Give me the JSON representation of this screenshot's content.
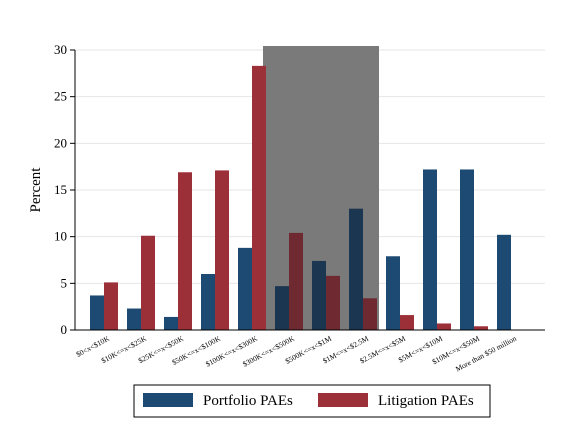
{
  "chart_data": {
    "type": "bar",
    "ylabel": "Percent",
    "xlabel": "",
    "ylim": [
      0,
      30
    ],
    "yticks": [
      0,
      5,
      10,
      15,
      20,
      25,
      30
    ],
    "grid": true,
    "legend_position": "bottom",
    "categories": [
      "$0<x<$10K",
      "$10K<=x<$25K",
      "$25K<=x<$50K",
      "$50K<=x<$100K",
      "$100K<=x<$300K",
      "$300K<=x<$500K",
      "$500K<=x<$1M",
      "$1M<=x<$2.5M",
      "$2.5M<=x<$5M",
      "$5M<=x<$10M",
      "$10M<=x<$50M",
      "More than $50 million"
    ],
    "series": [
      {
        "name": "Portfolio PAEs",
        "color": "#1c4a72",
        "values": [
          3.7,
          2.3,
          1.4,
          6.0,
          8.8,
          4.7,
          7.4,
          13.0,
          7.9,
          17.2,
          17.2,
          10.2
        ]
      },
      {
        "name": "Litigation PAEs",
        "color": "#9c3038",
        "values": [
          5.1,
          10.1,
          16.9,
          17.1,
          28.3,
          10.4,
          5.8,
          3.4,
          1.6,
          0.7,
          0.4,
          null
        ]
      }
    ],
    "shaded_region": {
      "from_category": 5,
      "to_category": 7,
      "color": "#7a7a7a"
    }
  }
}
